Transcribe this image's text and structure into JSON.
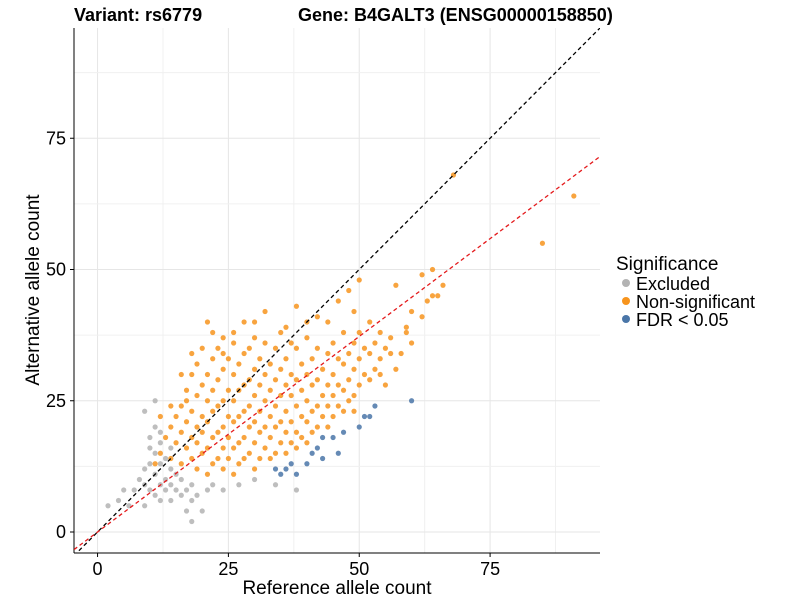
{
  "titles": {
    "variant": "Variant: rs6779",
    "gene": "Gene: B4GALT3 (ENSG00000158850)"
  },
  "chart_data": {
    "type": "scatter",
    "xlabel": "Reference allele count",
    "ylabel": "Alternative allele count",
    "xlim": [
      -4.5,
      96
    ],
    "ylim": [
      -4,
      96
    ],
    "xticks": [
      0,
      25,
      50,
      75
    ],
    "yticks": [
      0,
      25,
      50,
      75
    ],
    "grid": true,
    "legend": {
      "title": "Significance",
      "placement": "right",
      "entries": [
        {
          "label": "Excluded",
          "color": "#b3b3b3"
        },
        {
          "label": "Non-significant",
          "color": "#f7941d"
        },
        {
          "label": "FDR < 0.05",
          "color": "#4a76a8"
        }
      ]
    },
    "reference_lines": [
      {
        "name": "y = x",
        "slope": 1,
        "intercept": 0,
        "color": "#000000",
        "style": "dashed"
      },
      {
        "name": "fit",
        "slope": 0.745,
        "intercept": 0,
        "color": "#e41a1c",
        "style": "dashed"
      }
    ],
    "series": [
      {
        "name": "Excluded",
        "color": "#b3b3b3",
        "points": [
          [
            2,
            5
          ],
          [
            4,
            6
          ],
          [
            5,
            8
          ],
          [
            6,
            5
          ],
          [
            7,
            8
          ],
          [
            8,
            10
          ],
          [
            9,
            5
          ],
          [
            9,
            9
          ],
          [
            9,
            12
          ],
          [
            10,
            8
          ],
          [
            10,
            13
          ],
          [
            10,
            16
          ],
          [
            11,
            7
          ],
          [
            11,
            11
          ],
          [
            11,
            15
          ],
          [
            12,
            6
          ],
          [
            12,
            9
          ],
          [
            12,
            13
          ],
          [
            12,
            17
          ],
          [
            13,
            8
          ],
          [
            13,
            10
          ],
          [
            13,
            14
          ],
          [
            14,
            6
          ],
          [
            14,
            9
          ],
          [
            14,
            12
          ],
          [
            14,
            16
          ],
          [
            15,
            8
          ],
          [
            15,
            11
          ],
          [
            16,
            7
          ],
          [
            16,
            10
          ],
          [
            17,
            4
          ],
          [
            17,
            8
          ],
          [
            18,
            6
          ],
          [
            18,
            9
          ],
          [
            18,
            2
          ],
          [
            19,
            7
          ],
          [
            20,
            4
          ],
          [
            21,
            8
          ],
          [
            22,
            9
          ],
          [
            24,
            8
          ],
          [
            27,
            9
          ],
          [
            30,
            10
          ],
          [
            34,
            9
          ],
          [
            38,
            8
          ],
          [
            9,
            23
          ],
          [
            11,
            25
          ],
          [
            11,
            20
          ],
          [
            10,
            18
          ],
          [
            12,
            19
          ]
        ]
      },
      {
        "name": "FDR < 0.05",
        "color": "#4a76a8",
        "points": [
          [
            34,
            12
          ],
          [
            35,
            11
          ],
          [
            36,
            12
          ],
          [
            37,
            13
          ],
          [
            38,
            11
          ],
          [
            40,
            13
          ],
          [
            41,
            15
          ],
          [
            42,
            16
          ],
          [
            43,
            14
          ],
          [
            43,
            18
          ],
          [
            45,
            18
          ],
          [
            46,
            15
          ],
          [
            47,
            19
          ],
          [
            50,
            20
          ],
          [
            51,
            22
          ],
          [
            52,
            22
          ],
          [
            53,
            24
          ],
          [
            60,
            25
          ]
        ]
      },
      {
        "name": "Non-significant",
        "color": "#f7941d",
        "points": [
          [
            11,
            13
          ],
          [
            12,
            15
          ],
          [
            13,
            18
          ],
          [
            14,
            14
          ],
          [
            14,
            20
          ],
          [
            15,
            17
          ],
          [
            15,
            22
          ],
          [
            16,
            13
          ],
          [
            16,
            19
          ],
          [
            16,
            24
          ],
          [
            17,
            16
          ],
          [
            17,
            21
          ],
          [
            17,
            27
          ],
          [
            18,
            14
          ],
          [
            18,
            18
          ],
          [
            18,
            23
          ],
          [
            18,
            30
          ],
          [
            19,
            12
          ],
          [
            19,
            17
          ],
          [
            19,
            20
          ],
          [
            19,
            26
          ],
          [
            19,
            32
          ],
          [
            20,
            15
          ],
          [
            20,
            19
          ],
          [
            20,
            22
          ],
          [
            20,
            28
          ],
          [
            20,
            35
          ],
          [
            21,
            11
          ],
          [
            21,
            16
          ],
          [
            21,
            21
          ],
          [
            21,
            25
          ],
          [
            21,
            30
          ],
          [
            22,
            13
          ],
          [
            22,
            18
          ],
          [
            22,
            23
          ],
          [
            22,
            27
          ],
          [
            22,
            33
          ],
          [
            22,
            38
          ],
          [
            23,
            14
          ],
          [
            23,
            19
          ],
          [
            23,
            24
          ],
          [
            23,
            29
          ],
          [
            23,
            35
          ],
          [
            24,
            12
          ],
          [
            24,
            16
          ],
          [
            24,
            20
          ],
          [
            24,
            25
          ],
          [
            24,
            31
          ],
          [
            24,
            37
          ],
          [
            25,
            14
          ],
          [
            25,
            18
          ],
          [
            25,
            22
          ],
          [
            25,
            27
          ],
          [
            25,
            33
          ],
          [
            26,
            11
          ],
          [
            26,
            16
          ],
          [
            26,
            21
          ],
          [
            26,
            25
          ],
          [
            26,
            30
          ],
          [
            26,
            36
          ],
          [
            27,
            13
          ],
          [
            27,
            17
          ],
          [
            27,
            22
          ],
          [
            27,
            27
          ],
          [
            27,
            32
          ],
          [
            28,
            14
          ],
          [
            28,
            18
          ],
          [
            28,
            23
          ],
          [
            28,
            28
          ],
          [
            28,
            34
          ],
          [
            28,
            40
          ],
          [
            29,
            15
          ],
          [
            29,
            20
          ],
          [
            29,
            24
          ],
          [
            29,
            29
          ],
          [
            29,
            35
          ],
          [
            30,
            12
          ],
          [
            30,
            17
          ],
          [
            30,
            21
          ],
          [
            30,
            26
          ],
          [
            30,
            31
          ],
          [
            30,
            37
          ],
          [
            31,
            14
          ],
          [
            31,
            19
          ],
          [
            31,
            23
          ],
          [
            31,
            28
          ],
          [
            31,
            33
          ],
          [
            32,
            16
          ],
          [
            32,
            20
          ],
          [
            32,
            25
          ],
          [
            32,
            30
          ],
          [
            32,
            36
          ],
          [
            33,
            14
          ],
          [
            33,
            18
          ],
          [
            33,
            22
          ],
          [
            33,
            27
          ],
          [
            33,
            32
          ],
          [
            34,
            15
          ],
          [
            34,
            20
          ],
          [
            34,
            24
          ],
          [
            34,
            29
          ],
          [
            34,
            35
          ],
          [
            35,
            17
          ],
          [
            35,
            21
          ],
          [
            35,
            26
          ],
          [
            35,
            31
          ],
          [
            35,
            38
          ],
          [
            36,
            15
          ],
          [
            36,
            19
          ],
          [
            36,
            23
          ],
          [
            36,
            28
          ],
          [
            36,
            33
          ],
          [
            37,
            17
          ],
          [
            37,
            21
          ],
          [
            37,
            26
          ],
          [
            37,
            30
          ],
          [
            37,
            36
          ],
          [
            38,
            16
          ],
          [
            38,
            19
          ],
          [
            38,
            24
          ],
          [
            38,
            29
          ],
          [
            38,
            35
          ],
          [
            38,
            43
          ],
          [
            39,
            18
          ],
          [
            39,
            22
          ],
          [
            39,
            27
          ],
          [
            39,
            32
          ],
          [
            40,
            17
          ],
          [
            40,
            21
          ],
          [
            40,
            25
          ],
          [
            40,
            30
          ],
          [
            40,
            37
          ],
          [
            41,
            19
          ],
          [
            41,
            23
          ],
          [
            41,
            28
          ],
          [
            41,
            33
          ],
          [
            42,
            20
          ],
          [
            42,
            24
          ],
          [
            42,
            29
          ],
          [
            42,
            35
          ],
          [
            42,
            41
          ],
          [
            43,
            22
          ],
          [
            43,
            26
          ],
          [
            43,
            31
          ],
          [
            44,
            20
          ],
          [
            44,
            24
          ],
          [
            44,
            28
          ],
          [
            44,
            34
          ],
          [
            45,
            22
          ],
          [
            45,
            26
          ],
          [
            45,
            30
          ],
          [
            45,
            36
          ],
          [
            46,
            24
          ],
          [
            46,
            28
          ],
          [
            46,
            33
          ],
          [
            47,
            23
          ],
          [
            47,
            27
          ],
          [
            47,
            32
          ],
          [
            47,
            38
          ],
          [
            48,
            25
          ],
          [
            48,
            29
          ],
          [
            48,
            34
          ],
          [
            49,
            26
          ],
          [
            49,
            31
          ],
          [
            49,
            36
          ],
          [
            49,
            42
          ],
          [
            50,
            28
          ],
          [
            50,
            33
          ],
          [
            50,
            38
          ],
          [
            51,
            30
          ],
          [
            51,
            35
          ],
          [
            52,
            29
          ],
          [
            52,
            34
          ],
          [
            52,
            40
          ],
          [
            53,
            31
          ],
          [
            53,
            36
          ],
          [
            54,
            33
          ],
          [
            54,
            38
          ],
          [
            55,
            35
          ],
          [
            55,
            28
          ],
          [
            56,
            37
          ],
          [
            57,
            31
          ],
          [
            58,
            34
          ],
          [
            59,
            39
          ],
          [
            60,
            36
          ],
          [
            60,
            42
          ],
          [
            62,
            41
          ],
          [
            63,
            44
          ],
          [
            64,
            45
          ],
          [
            65,
            45
          ],
          [
            66,
            47
          ],
          [
            62,
            49
          ],
          [
            64,
            50
          ],
          [
            68,
            68
          ],
          [
            85,
            55
          ],
          [
            91,
            64
          ],
          [
            57,
            47
          ],
          [
            48,
            46
          ],
          [
            50,
            48
          ],
          [
            59,
            38
          ],
          [
            56,
            34
          ],
          [
            54,
            30
          ],
          [
            49,
            23
          ],
          [
            16,
            30
          ],
          [
            18,
            34
          ],
          [
            21,
            40
          ],
          [
            17,
            25
          ],
          [
            14,
            24
          ],
          [
            12,
            22
          ],
          [
            24,
            34
          ],
          [
            26,
            38
          ],
          [
            30,
            40
          ],
          [
            32,
            42
          ],
          [
            36,
            39
          ],
          [
            40,
            40
          ],
          [
            44,
            40
          ],
          [
            46,
            44
          ]
        ]
      }
    ]
  }
}
